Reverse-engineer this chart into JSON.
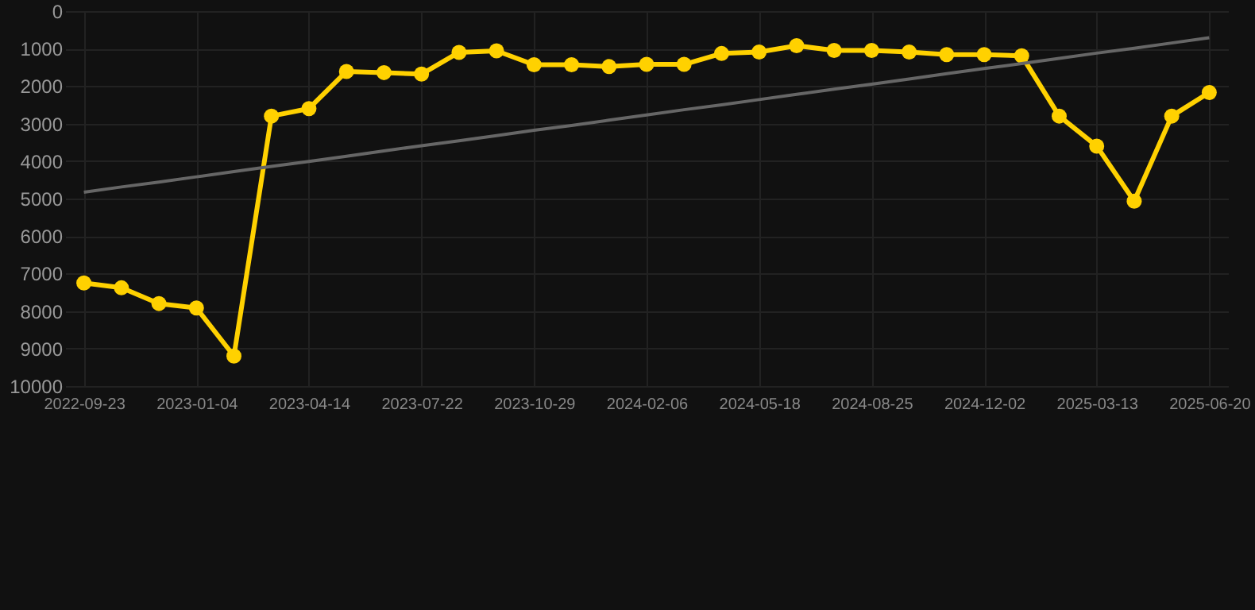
{
  "chart_data": {
    "type": "line",
    "categories": [
      "2022-09-23",
      null,
      null,
      "2023-01-04",
      null,
      null,
      "2023-04-14",
      null,
      null,
      "2023-07-22",
      null,
      null,
      "2023-10-29",
      null,
      null,
      "2024-02-06",
      null,
      null,
      "2024-05-18",
      null,
      null,
      "2024-08-25",
      null,
      null,
      "2024-12-02",
      null,
      null,
      "2025-03-13",
      null,
      null,
      "2025-06-20"
    ],
    "series": [
      {
        "color": "#ffd100",
        "marker": "circle",
        "values": [
          7250,
          7380,
          7800,
          7920,
          9200,
          2800,
          2600,
          1610,
          1640,
          1680,
          1100,
          1060,
          1430,
          1430,
          1480,
          1420,
          1420,
          1130,
          1090,
          920,
          1050,
          1050,
          1090,
          1160,
          1160,
          1190,
          2800,
          3600,
          5070,
          2800,
          2170
        ]
      },
      {
        "type": "line",
        "color": "#666666",
        "marker": "none",
        "values": [
          4830,
          4690,
          4560,
          4420,
          4280,
          4140,
          4010,
          3870,
          3730,
          3590,
          3460,
          3320,
          3180,
          3050,
          2910,
          2770,
          2630,
          2500,
          2360,
          2220,
          2080,
          1950,
          1810,
          1670,
          1530,
          1400,
          1260,
          1120,
          990,
          850,
          710
        ]
      }
    ],
    "ylim": [
      10000,
      0
    ],
    "yticks": [
      0,
      1000,
      2000,
      3000,
      4000,
      5000,
      6000,
      7000,
      8000,
      9000,
      10000
    ],
    "grid": true
  }
}
